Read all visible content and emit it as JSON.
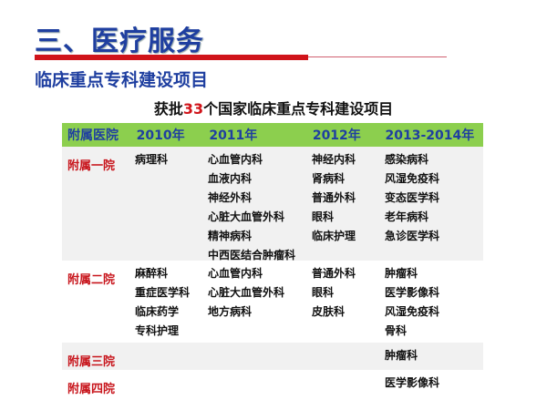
{
  "title": "三、医疗服务",
  "subtitle": "临床重点专科建设项目",
  "heading": {
    "prefix": "获批",
    "count": "33",
    "suffix": "个国家临床重点专科建设项目"
  },
  "table": {
    "headers": [
      "附属医院",
      "2010年",
      "2011年",
      "2012年",
      "2013-2014年"
    ],
    "rows": [
      {
        "hospital": "附属一院",
        "y2010": [
          "病理科"
        ],
        "y2011": [
          "心血管内科",
          "血液内科",
          "神经外科",
          "心脏大血管外科",
          "精神病科",
          "中西医结合肿瘤科"
        ],
        "y2012": [
          "神经内科",
          "肾病科",
          "普通外科",
          "眼科",
          "临床护理"
        ],
        "y2013": [
          "感染病科",
          "风湿免疫科",
          "变态医学科",
          "老年病科",
          "急诊医学科"
        ]
      },
      {
        "hospital": "附属二院",
        "y2010": [
          "麻醉科",
          "重症医学科",
          "临床药学",
          "专科护理"
        ],
        "y2011": [
          "心血管内科",
          "心脏大血管外科",
          "地方病科"
        ],
        "y2012": [
          "普通外科",
          "眼科",
          "皮肤科"
        ],
        "y2013": [
          "肿瘤科",
          "医学影像科",
          "风湿免疫科",
          "骨科"
        ]
      },
      {
        "hospital": "附属三院",
        "y2010": [],
        "y2011": [],
        "y2012": [],
        "y2013": [
          "肿瘤科"
        ]
      },
      {
        "hospital": "附属四院",
        "y2010": [],
        "y2011": [],
        "y2012": [],
        "y2013": [
          "医学影像科"
        ]
      }
    ]
  },
  "colors": {
    "title": "#1f3fa0",
    "accent": "#d0141a",
    "header_bg": "#8ccf4e"
  }
}
